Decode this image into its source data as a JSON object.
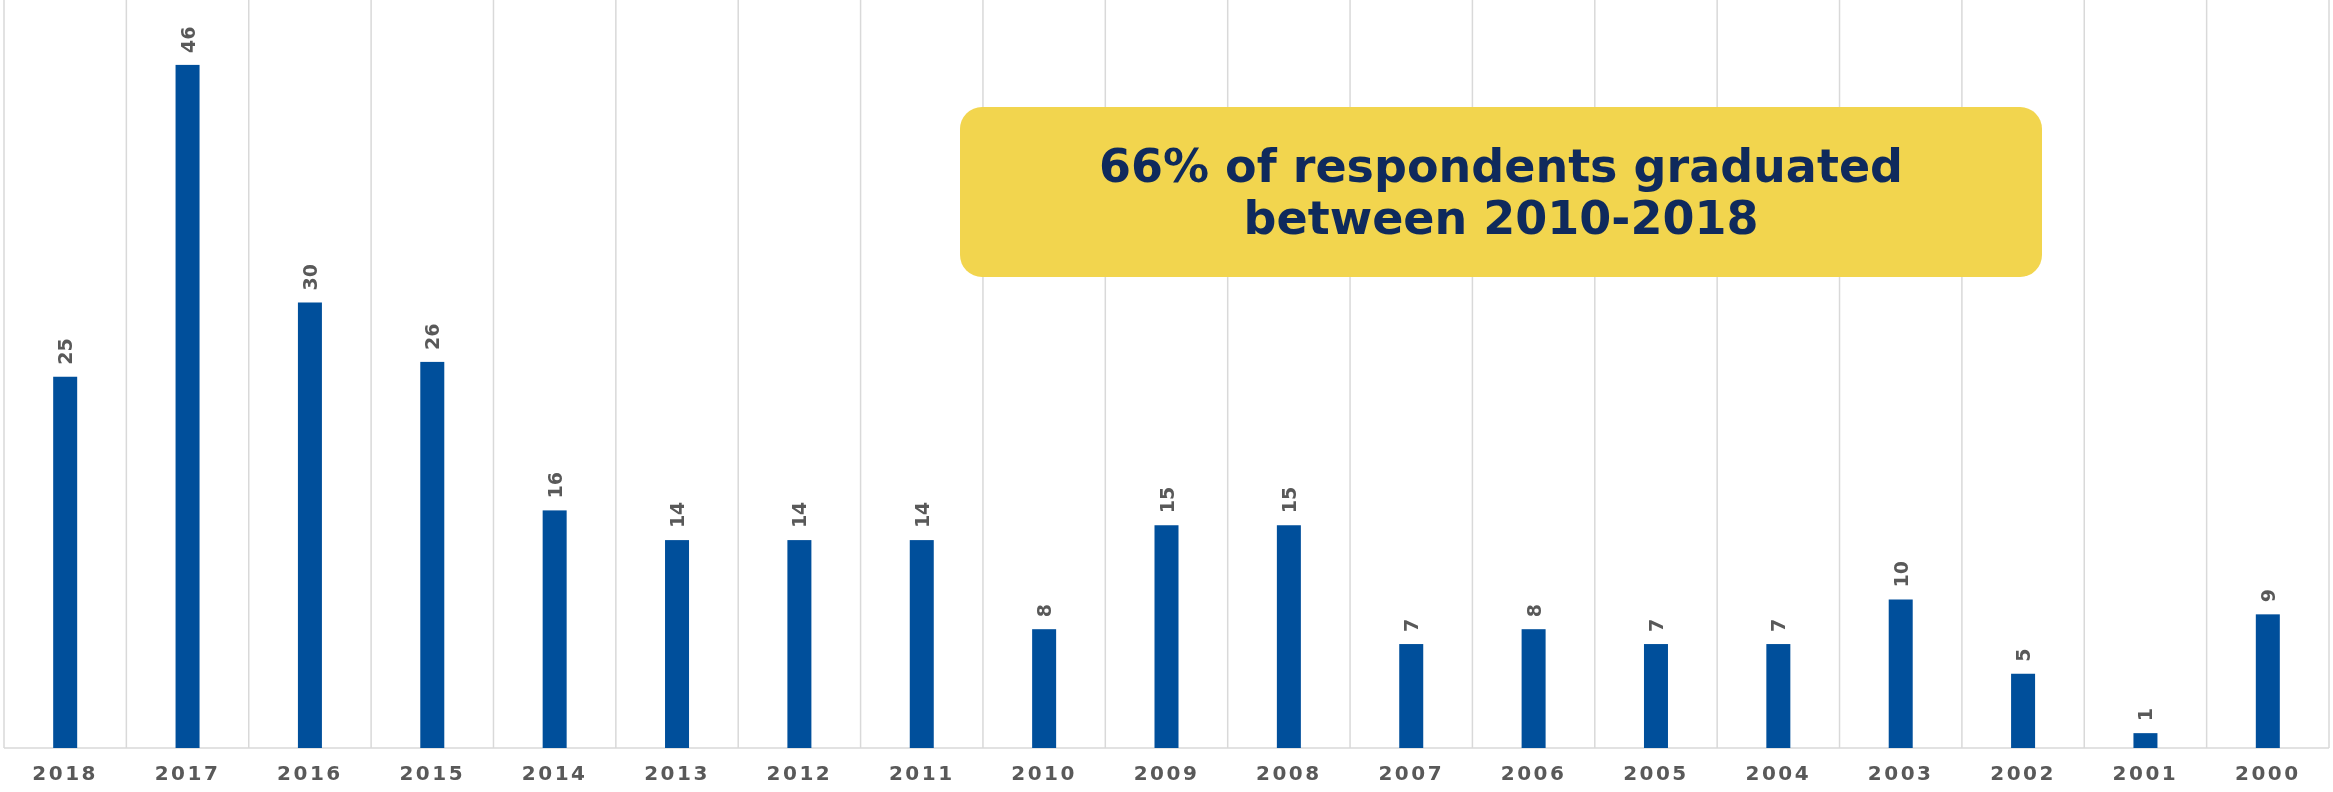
{
  "chart_data": {
    "type": "bar",
    "categories": [
      "2018",
      "2017",
      "2016",
      "2015",
      "2014",
      "2013",
      "2012",
      "2011",
      "2010",
      "2009",
      "2008",
      "2007",
      "2006",
      "2005",
      "2004",
      "2003",
      "2002",
      "2001",
      "2000"
    ],
    "values": [
      25,
      46,
      30,
      26,
      16,
      14,
      14,
      14,
      8,
      15,
      15,
      7,
      8,
      7,
      7,
      10,
      5,
      1,
      9
    ],
    "color": "#004f9b",
    "data_labels": true,
    "grid": "x",
    "annotations": [
      "66% of respondents graduated between 2010-2018"
    ]
  }
}
